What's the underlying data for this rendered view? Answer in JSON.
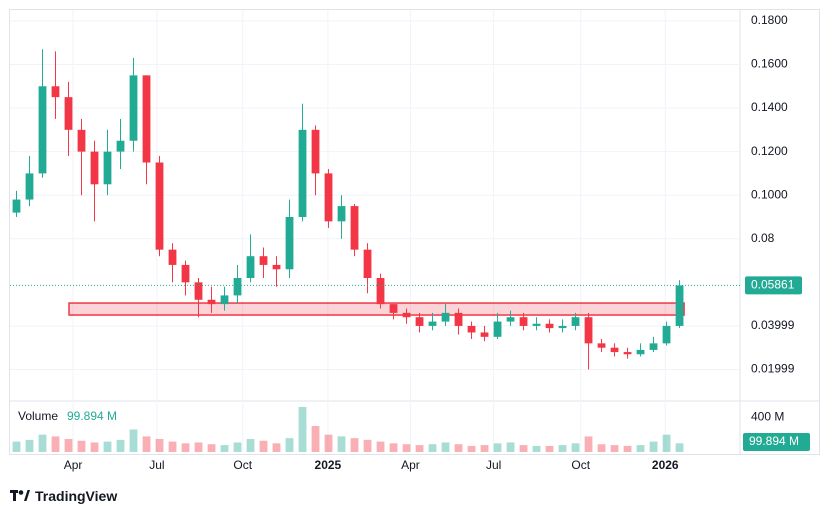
{
  "chart_data": {
    "type": "candlestick",
    "up_color": "#22ab94",
    "down_color": "#f23645",
    "open": [
      0.092,
      0.098,
      0.11,
      0.15,
      0.145,
      0.13,
      0.12,
      0.105,
      0.12,
      0.125,
      0.155,
      0.115,
      0.075,
      0.068,
      0.06,
      0.052,
      0.05,
      0.054,
      0.062,
      0.072,
      0.068,
      0.066,
      0.09,
      0.13,
      0.11,
      0.088,
      0.095,
      0.075,
      0.062,
      0.05,
      0.046,
      0.044,
      0.04,
      0.042,
      0.046,
      0.04,
      0.037,
      0.035,
      0.042,
      0.044,
      0.04,
      0.041,
      0.039,
      0.04,
      0.044,
      0.032,
      0.03,
      0.028,
      0.027,
      0.029,
      0.032,
      0.04
    ],
    "high": [
      0.102,
      0.118,
      0.167,
      0.166,
      0.152,
      0.135,
      0.125,
      0.13,
      0.135,
      0.163,
      0.155,
      0.118,
      0.078,
      0.07,
      0.062,
      0.058,
      0.058,
      0.068,
      0.082,
      0.076,
      0.072,
      0.098,
      0.142,
      0.132,
      0.112,
      0.1,
      0.096,
      0.078,
      0.064,
      0.05,
      0.048,
      0.046,
      0.046,
      0.05,
      0.048,
      0.042,
      0.04,
      0.046,
      0.047,
      0.046,
      0.044,
      0.043,
      0.043,
      0.046,
      0.046,
      0.034,
      0.032,
      0.03,
      0.032,
      0.035,
      0.042,
      0.061
    ],
    "low": [
      0.09,
      0.095,
      0.108,
      0.135,
      0.118,
      0.1,
      0.088,
      0.1,
      0.112,
      0.12,
      0.105,
      0.072,
      0.06,
      0.054,
      0.044,
      0.046,
      0.047,
      0.05,
      0.06,
      0.062,
      0.058,
      0.062,
      0.088,
      0.1,
      0.085,
      0.08,
      0.072,
      0.055,
      0.048,
      0.043,
      0.041,
      0.037,
      0.038,
      0.04,
      0.036,
      0.034,
      0.033,
      0.034,
      0.04,
      0.038,
      0.038,
      0.037,
      0.037,
      0.038,
      0.02,
      0.028,
      0.026,
      0.025,
      0.026,
      0.028,
      0.031,
      0.039
    ],
    "close": [
      0.098,
      0.11,
      0.15,
      0.145,
      0.13,
      0.12,
      0.105,
      0.12,
      0.125,
      0.155,
      0.115,
      0.075,
      0.068,
      0.06,
      0.052,
      0.05,
      0.054,
      0.062,
      0.072,
      0.068,
      0.066,
      0.09,
      0.13,
      0.11,
      0.088,
      0.095,
      0.075,
      0.062,
      0.05,
      0.046,
      0.044,
      0.04,
      0.042,
      0.046,
      0.04,
      0.037,
      0.035,
      0.042,
      0.044,
      0.04,
      0.041,
      0.039,
      0.04,
      0.044,
      0.032,
      0.03,
      0.028,
      0.027,
      0.029,
      0.032,
      0.04,
      0.05861
    ],
    "volume": [
      120,
      140,
      200,
      180,
      150,
      130,
      110,
      120,
      140,
      260,
      180,
      150,
      120,
      100,
      110,
      90,
      80,
      110,
      150,
      130,
      100,
      160,
      520,
      300,
      200,
      180,
      160,
      140,
      120,
      100,
      90,
      80,
      90,
      110,
      90,
      70,
      80,
      100,
      110,
      80,
      70,
      70,
      80,
      100,
      180,
      90,
      80,
      70,
      80,
      120,
      200,
      99.894
    ],
    "volume_title": "Volume",
    "last_volume_label": "99.894 M",
    "xlim": [
      -0.5,
      55.65
    ],
    "xticks": [
      {
        "value": 4.35,
        "label": "Apr"
      },
      {
        "value": 10.8,
        "label": "Jul"
      },
      {
        "value": 17.4,
        "label": "Oct"
      },
      {
        "value": 23.95,
        "label": "2025"
      },
      {
        "value": 30.3,
        "label": "Apr"
      },
      {
        "value": 36.7,
        "label": "Jul"
      },
      {
        "value": 43.4,
        "label": "Oct"
      },
      {
        "value": 49.9,
        "label": "2026"
      }
    ],
    "ylim": [
      0.006,
      0.185
    ],
    "yticks": [
      {
        "value": 0.18,
        "label": "0.1800"
      },
      {
        "value": 0.16,
        "label": "0.1600"
      },
      {
        "value": 0.14,
        "label": "0.1400"
      },
      {
        "value": 0.12,
        "label": "0.1200"
      },
      {
        "value": 0.1,
        "label": "0.1000"
      },
      0.08,
      0.03999,
      0.01999
    ],
    "volume_ylim": [
      0,
      600
    ],
    "volume_yticks": [
      {
        "value": 400,
        "label": "400 M"
      }
    ],
    "zone": {
      "from": 4.04,
      "to": 51.35,
      "top": 0.0505,
      "bottom": 0.045
    },
    "grid": true
  },
  "branding": "TradingView"
}
